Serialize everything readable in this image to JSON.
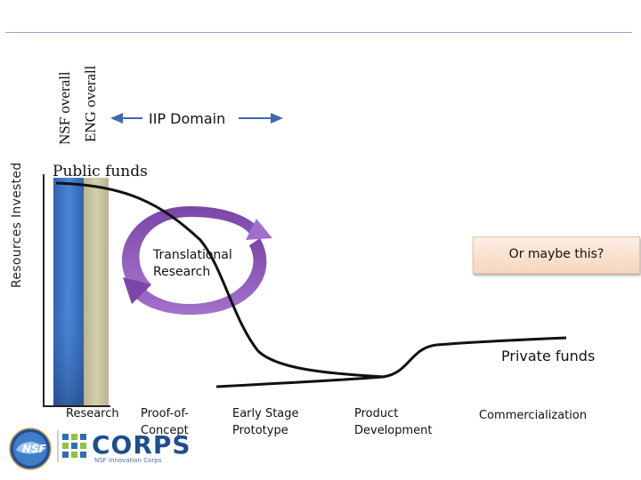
{
  "labels": {
    "nsf_overall": "NSF overall",
    "eng_overall": "ENG overall",
    "iip_domain": "IIP Domain",
    "public_funds": "Public funds",
    "translational_research_line1": "Translational",
    "translational_research_line2": "Research",
    "or_maybe_this": "Or maybe this?",
    "private_funds": "Private funds",
    "y_axis": "Resources Invested"
  },
  "stages": {
    "research": "Research",
    "proof_line1": "Proof-of-",
    "proof_line2": "Concept",
    "early_line1": "Early Stage",
    "early_line2": "Prototype",
    "product_line1": "Product",
    "product_line2": "Development",
    "commercialization": "Commercialization"
  },
  "logos": {
    "nsf": "NSF",
    "corps": "CORPS",
    "corps_subtitle": "NSF Innovation Corps"
  },
  "colors": {
    "nsf_bar": "#3a74c4",
    "eng_bar": "#c7c2a0",
    "arrow_blue": "#3f68b0",
    "cycle_purple": "#8a52b6",
    "callout_fill": "#f9e2cf"
  }
}
